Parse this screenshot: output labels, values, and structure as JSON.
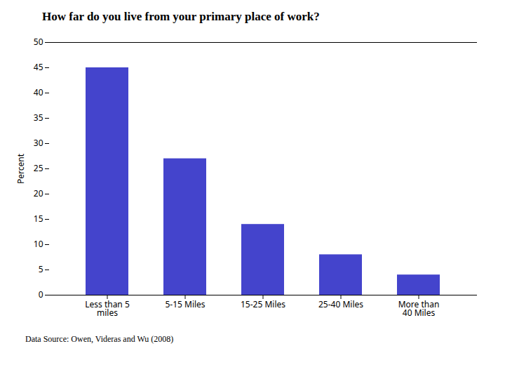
{
  "chart_data": {
    "type": "bar",
    "title": "How far do you live from your primary place of work?",
    "categories": [
      "Less than 5\nmiles",
      "5-15 Miles",
      "15-25 Miles",
      "25-40 Miles",
      "More than\n40 Miles"
    ],
    "values": [
      45,
      27,
      14,
      8,
      4
    ],
    "color": "#4444cc",
    "ylabel": "Percent",
    "ylim": [
      0,
      50
    ],
    "yticks": [
      0,
      5,
      10,
      15,
      20,
      25,
      30,
      35,
      40,
      45,
      50
    ],
    "grid": false,
    "caption": "Data Source: Owen, Videras and Wu (2008)"
  }
}
